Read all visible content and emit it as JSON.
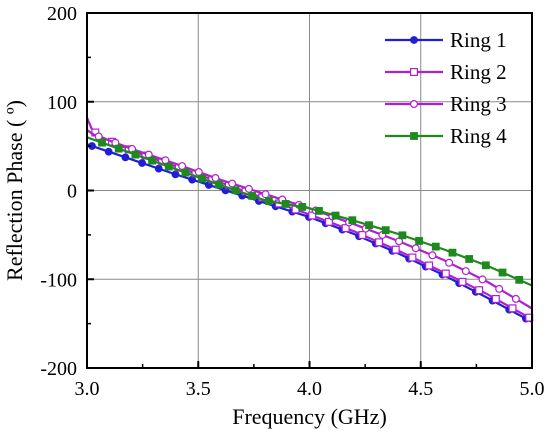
{
  "chart_data": {
    "type": "line",
    "title": "",
    "xlabel": "Frequency (GHz)",
    "ylabel": "Reflection Phase ( º)",
    "xlim": [
      3.0,
      5.0
    ],
    "ylim": [
      -200,
      200
    ],
    "x_ticks": [
      "3.0",
      "3.5",
      "4.0",
      "4.5",
      "5.0"
    ],
    "y_ticks": [
      "200",
      "100",
      "0",
      "-100",
      "-200"
    ],
    "grid": true,
    "legend_position": "top-right",
    "series": [
      {
        "name": "Ring 1",
        "color": "#1f1fd6",
        "marker": "filled-circle",
        "x": [
          3.0,
          3.2,
          3.4,
          3.6,
          3.8,
          4.0,
          4.2,
          4.4,
          4.6,
          4.8,
          5.0
        ],
        "y": [
          52,
          35,
          18,
          2,
          -14,
          -30,
          -49,
          -71,
          -95,
          -121,
          -148
        ]
      },
      {
        "name": "Ring 2",
        "color": "#b020d0",
        "marker": "open-square",
        "x": [
          3.0,
          3.02,
          3.05,
          3.2,
          3.4,
          3.6,
          3.8,
          4.0,
          4.2,
          4.4,
          4.6,
          4.8,
          5.0
        ],
        "y": [
          82,
          70,
          62,
          45,
          27,
          9,
          -9,
          -27,
          -46,
          -68,
          -92,
          -117,
          -145
        ]
      },
      {
        "name": "Ring 3",
        "color": "#b020d0",
        "marker": "open-circle",
        "x": [
          3.0,
          3.03,
          3.2,
          3.4,
          3.6,
          3.8,
          4.0,
          4.2,
          4.4,
          4.6,
          4.8,
          5.0
        ],
        "y": [
          68,
          63,
          47,
          30,
          12,
          -4,
          -20,
          -38,
          -57,
          -78,
          -103,
          -133
        ]
      },
      {
        "name": "Ring 4",
        "color": "#1e8a1e",
        "marker": "filled-square",
        "x": [
          3.0,
          3.2,
          3.4,
          3.6,
          3.8,
          4.0,
          4.2,
          4.4,
          4.6,
          4.8,
          5.0
        ],
        "y": [
          60,
          42,
          24,
          6,
          -11,
          -20,
          -34,
          -49,
          -66,
          -85,
          -107
        ]
      }
    ]
  }
}
